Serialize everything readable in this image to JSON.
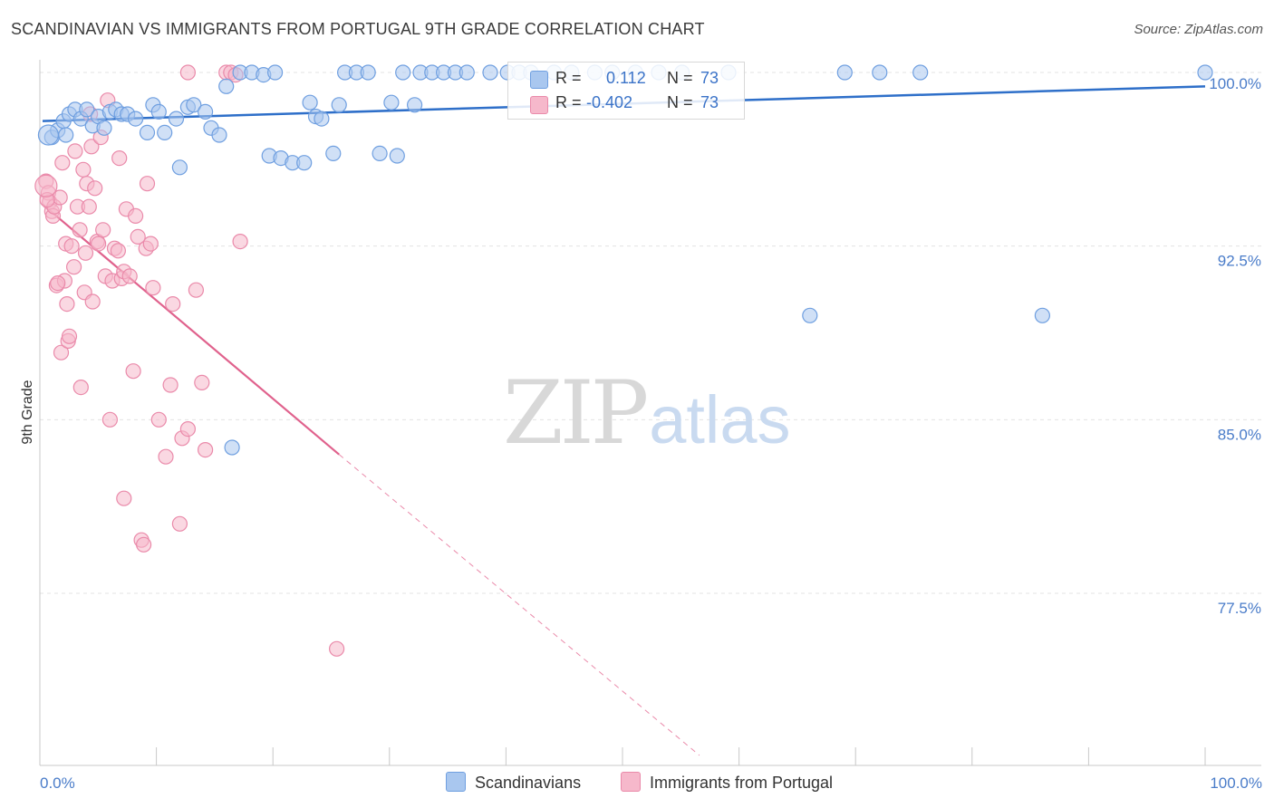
{
  "header": {
    "title": "SCANDINAVIAN VS IMMIGRANTS FROM PORTUGAL 9TH GRADE CORRELATION CHART",
    "source": "Source: ZipAtlas.com"
  },
  "legend": {
    "blue": {
      "r_label": "R =",
      "r_value": "0.112",
      "n_label": "N =",
      "n_value": "73"
    },
    "pink": {
      "r_label": "R =",
      "r_value": "-0.402",
      "n_label": "N =",
      "n_value": "73"
    }
  },
  "bottom_legend": {
    "series1": "Scandinavians",
    "series2": "Immigrants from Portugal"
  },
  "watermark": {
    "zip": "ZIP",
    "atlas": "atlas"
  },
  "colors": {
    "blue_fill": "#a9c7ef",
    "blue_stroke": "#6f9fe0",
    "blue_line": "#2e6fc9",
    "pink_fill": "#f6b8cb",
    "pink_stroke": "#ea8aaa",
    "pink_line": "#e0628d",
    "grid": "#e3e3e3",
    "tick_text": "#4a7cc9"
  },
  "chart_data": {
    "type": "scatter",
    "title": "SCANDINAVIAN VS IMMIGRANTS FROM PORTUGAL 9TH GRADE CORRELATION CHART",
    "xlabel": "",
    "ylabel": "9th Grade",
    "xlim": [
      0,
      100
    ],
    "ylim": [
      70.5,
      101.2
    ],
    "y_ticks": [
      77.5,
      85.0,
      92.5,
      100.0
    ],
    "y_tick_labels": [
      "77.5%",
      "85.0%",
      "92.5%",
      "100.0%"
    ],
    "x_tick_labels": [
      "0.0%",
      "100.0%"
    ],
    "grid": true,
    "series": [
      {
        "name": "Scandinavians",
        "r": 0.112,
        "n": 73,
        "trend": {
          "x": [
            0,
            100
          ],
          "y": [
            97.9,
            99.4
          ]
        },
        "points": [
          [
            0.8,
            97.2
          ],
          [
            1.3,
            97.5
          ],
          [
            1.8,
            97.9
          ],
          [
            2.3,
            98.2
          ],
          [
            2.8,
            98.4
          ],
          [
            3.3,
            98.0
          ],
          [
            3.8,
            98.4
          ],
          [
            4.3,
            97.7
          ],
          [
            4.8,
            98.1
          ],
          [
            5.3,
            97.6
          ],
          [
            5.8,
            98.3
          ],
          [
            6.3,
            98.4
          ],
          [
            6.8,
            98.2
          ],
          [
            7.3,
            98.2
          ],
          [
            8.0,
            98.0
          ],
          [
            9.0,
            97.4
          ],
          [
            9.5,
            98.6
          ],
          [
            10.0,
            98.3
          ],
          [
            10.5,
            97.4
          ],
          [
            11.5,
            98.0
          ],
          [
            12.5,
            98.5
          ],
          [
            13.0,
            98.6
          ],
          [
            14.0,
            98.3
          ],
          [
            14.5,
            97.6
          ],
          [
            15.2,
            97.3
          ],
          [
            11.8,
            95.9
          ],
          [
            15.8,
            99.4
          ],
          [
            17.0,
            100.0
          ],
          [
            18.0,
            100.0
          ],
          [
            19.0,
            99.9
          ],
          [
            20.0,
            100.0
          ],
          [
            19.5,
            96.4
          ],
          [
            20.5,
            96.3
          ],
          [
            21.5,
            96.1
          ],
          [
            22.5,
            96.1
          ],
          [
            23.0,
            98.7
          ],
          [
            23.5,
            98.1
          ],
          [
            24.0,
            98.0
          ],
          [
            25.0,
            96.5
          ],
          [
            25.5,
            98.6
          ],
          [
            26.0,
            100.0
          ],
          [
            27.0,
            100.0
          ],
          [
            28.0,
            100.0
          ],
          [
            29.0,
            96.5
          ],
          [
            30.0,
            98.7
          ],
          [
            30.5,
            96.4
          ],
          [
            31.0,
            100.0
          ],
          [
            32.0,
            98.6
          ],
          [
            32.5,
            100.0
          ],
          [
            33.5,
            100.0
          ],
          [
            34.5,
            100.0
          ],
          [
            35.5,
            100.0
          ],
          [
            36.5,
            100.0
          ],
          [
            38.5,
            100.0
          ],
          [
            40.0,
            100.0
          ],
          [
            41.0,
            100.0
          ],
          [
            42.0,
            100.0
          ],
          [
            44.0,
            100.0
          ],
          [
            45.5,
            100.0
          ],
          [
            47.5,
            100.0
          ],
          [
            49.0,
            100.0
          ],
          [
            51.0,
            100.0
          ],
          [
            53.0,
            100.0
          ],
          [
            55.0,
            100.0
          ],
          [
            59.0,
            100.0
          ],
          [
            66.0,
            89.5
          ],
          [
            69.0,
            100.0
          ],
          [
            72.0,
            100.0
          ],
          [
            75.5,
            100.0
          ],
          [
            86.0,
            89.5
          ],
          [
            100.0,
            100.0
          ],
          [
            16.3,
            83.8
          ],
          [
            2.0,
            97.3
          ]
        ]
      },
      {
        "name": "Immigrants from Portugal",
        "r": -0.402,
        "n": 73,
        "trend": {
          "x": [
            0,
            25.5
          ],
          "y": [
            94.3,
            83.5
          ]
        },
        "trend_dashed": {
          "x": [
            25.5,
            56.5
          ],
          "y": [
            83.5,
            70.5
          ]
        },
        "points": [
          [
            0.3,
            95.3
          ],
          [
            0.5,
            94.8
          ],
          [
            0.6,
            94.4
          ],
          [
            0.8,
            94.0
          ],
          [
            0.9,
            93.8
          ],
          [
            1.0,
            94.2
          ],
          [
            1.2,
            90.8
          ],
          [
            1.5,
            94.6
          ],
          [
            1.6,
            87.9
          ],
          [
            1.7,
            96.1
          ],
          [
            1.9,
            91.0
          ],
          [
            2.0,
            92.6
          ],
          [
            2.1,
            90.0
          ],
          [
            2.2,
            88.4
          ],
          [
            2.3,
            88.6
          ],
          [
            2.5,
            92.5
          ],
          [
            2.7,
            91.6
          ],
          [
            2.8,
            96.6
          ],
          [
            3.0,
            94.2
          ],
          [
            3.2,
            93.2
          ],
          [
            3.3,
            86.4
          ],
          [
            3.5,
            95.8
          ],
          [
            3.6,
            90.5
          ],
          [
            3.7,
            92.2
          ],
          [
            3.8,
            95.2
          ],
          [
            4.0,
            94.2
          ],
          [
            4.1,
            98.2
          ],
          [
            4.2,
            96.8
          ],
          [
            4.3,
            90.1
          ],
          [
            4.5,
            95.0
          ],
          [
            4.7,
            92.7
          ],
          [
            4.8,
            92.6
          ],
          [
            5.0,
            97.2
          ],
          [
            5.2,
            93.2
          ],
          [
            5.4,
            91.2
          ],
          [
            5.6,
            98.8
          ],
          [
            5.8,
            85.0
          ],
          [
            6.0,
            91.0
          ],
          [
            6.2,
            92.4
          ],
          [
            6.5,
            92.3
          ],
          [
            6.6,
            96.3
          ],
          [
            6.8,
            91.1
          ],
          [
            7.0,
            91.4
          ],
          [
            7.2,
            94.1
          ],
          [
            7.5,
            91.2
          ],
          [
            7.8,
            87.1
          ],
          [
            8.0,
            93.8
          ],
          [
            8.2,
            92.9
          ],
          [
            8.5,
            79.8
          ],
          [
            8.7,
            79.6
          ],
          [
            8.9,
            92.4
          ],
          [
            9.0,
            95.2
          ],
          [
            9.3,
            92.6
          ],
          [
            9.5,
            90.7
          ],
          [
            10.0,
            85.0
          ],
          [
            10.6,
            83.4
          ],
          [
            11.0,
            86.5
          ],
          [
            11.2,
            90.0
          ],
          [
            11.8,
            80.5
          ],
          [
            12.0,
            84.2
          ],
          [
            12.5,
            84.6
          ],
          [
            13.2,
            90.6
          ],
          [
            13.7,
            86.6
          ],
          [
            14.0,
            83.7
          ],
          [
            15.8,
            100.0
          ],
          [
            16.2,
            100.0
          ],
          [
            16.6,
            99.9
          ],
          [
            17.0,
            92.7
          ],
          [
            25.3,
            75.1
          ],
          [
            12.5,
            100.0
          ],
          [
            0.4,
            94.5
          ],
          [
            1.3,
            90.9
          ],
          [
            7.0,
            81.6
          ]
        ]
      }
    ]
  }
}
